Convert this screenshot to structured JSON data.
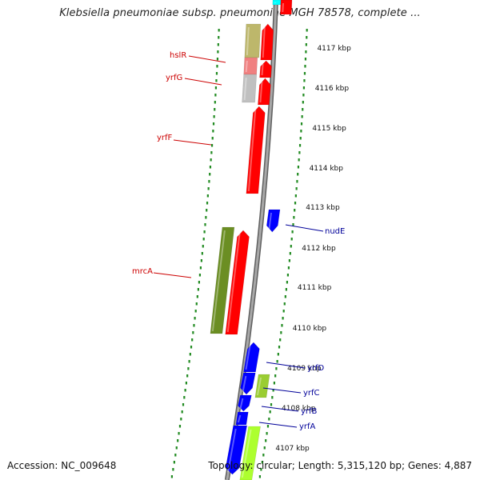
{
  "title": "Klebsiella pneumoniae subsp. pneumoniae MGH 78578, complete ...",
  "footer": {
    "accession": "Accession: NC_009648",
    "summary": "Topology: circular; Length: 5,315,120 bp; Genes: 4,887"
  },
  "colors": {
    "backbone": "#8c8c8c",
    "track_dots": "#228b22",
    "red_gene": "#ff0000",
    "blue_gene": "#0000ff",
    "olive_gene": "#6b8e23",
    "lime_gene": "#adff2f",
    "label_red": "#cc0000",
    "label_blue": "#000099"
  },
  "scale_ticks": [
    {
      "kbp": 4117,
      "label": "4117 kbp"
    },
    {
      "kbp": 4116,
      "label": "4116 kbp"
    },
    {
      "kbp": 4115,
      "label": "4115 kbp"
    },
    {
      "kbp": 4114,
      "label": "4114 kbp"
    },
    {
      "kbp": 4113,
      "label": "4113 kbp"
    },
    {
      "kbp": 4112,
      "label": "4112 kbp"
    },
    {
      "kbp": 4111,
      "label": "4111 kbp"
    },
    {
      "kbp": 4110,
      "label": "4110 kbp"
    },
    {
      "kbp": 4109,
      "label": "4109 kbp"
    },
    {
      "kbp": 4108,
      "label": "4108 kbp"
    },
    {
      "kbp": 4107,
      "label": "4107 kbp"
    }
  ],
  "gene_labels": [
    {
      "name": "hslR",
      "color": "red"
    },
    {
      "name": "yrfG",
      "color": "red"
    },
    {
      "name": "yrfF",
      "color": "red"
    },
    {
      "name": "mrcA",
      "color": "red"
    },
    {
      "name": "nudE",
      "color": "blue"
    },
    {
      "name": "yrfD",
      "color": "blue"
    },
    {
      "name": "yrfC",
      "color": "blue"
    },
    {
      "name": "yrfB",
      "color": "blue"
    },
    {
      "name": "yrfA",
      "color": "blue"
    }
  ]
}
